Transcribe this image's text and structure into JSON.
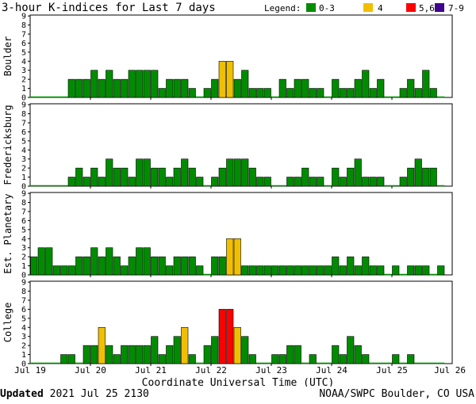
{
  "title": "3-hour K-indices for Last 7 days",
  "legend": {
    "label": "Legend:",
    "items": [
      {
        "label": "0-3",
        "color": "#008c00"
      },
      {
        "label": "4",
        "color": "#f0c000"
      },
      {
        "label": "5,6",
        "color": "#ff0000"
      },
      {
        "label": "7-9",
        "color": "#400090"
      }
    ]
  },
  "footer": {
    "updated_label": "Updated",
    "updated_value": "2021 Jul 25 2130",
    "credit": "NOAA/SWPC Boulder, CO USA"
  },
  "chart_data": {
    "type": "bar",
    "xlabel": "Coordinate Universal Time (UTC)",
    "x_ticks": [
      "Jul 19",
      "Jul 20",
      "Jul 21",
      "Jul 22",
      "Jul 23",
      "Jul 24",
      "Jul 25",
      "Jul 26"
    ],
    "ylim": [
      0,
      9
    ],
    "y_ticks": [
      0,
      1,
      2,
      3,
      4,
      5,
      6,
      7,
      8,
      9
    ],
    "bars_per_day": 8,
    "panels": [
      {
        "ylabel": "Boulder",
        "values": [
          0,
          0,
          0,
          0,
          0,
          2,
          2,
          2,
          3,
          2,
          3,
          2,
          2,
          3,
          3,
          3,
          3,
          1,
          2,
          2,
          2,
          1,
          0,
          1,
          2,
          4,
          4,
          2,
          3,
          1,
          1,
          1,
          0,
          2,
          1,
          2,
          2,
          1,
          1,
          0,
          2,
          1,
          1,
          2,
          3,
          1,
          2,
          0,
          0,
          1,
          2,
          1,
          3,
          1,
          0
        ]
      },
      {
        "ylabel": "Fredericksburg",
        "values": [
          0,
          0,
          0,
          0,
          0,
          1,
          2,
          1,
          2,
          1,
          3,
          2,
          2,
          1,
          3,
          3,
          2,
          2,
          1,
          2,
          3,
          2,
          1,
          0,
          1,
          2,
          3,
          3,
          3,
          2,
          1,
          1,
          0,
          0,
          1,
          1,
          2,
          1,
          1,
          0,
          2,
          1,
          2,
          3,
          1,
          1,
          1,
          0,
          0,
          1,
          2,
          3,
          2,
          2,
          0
        ]
      },
      {
        "ylabel": "Est. Planetary",
        "values": [
          2,
          3,
          3,
          1,
          1,
          1,
          2,
          2,
          3,
          2,
          3,
          2,
          1,
          2,
          3,
          3,
          2,
          2,
          1,
          2,
          2,
          2,
          1,
          0,
          2,
          2,
          4,
          4,
          1,
          1,
          1,
          1,
          1,
          1,
          1,
          1,
          1,
          1,
          1,
          1,
          2,
          1,
          2,
          1,
          2,
          1,
          1,
          0,
          1,
          0,
          1,
          1,
          1,
          0,
          1
        ]
      },
      {
        "ylabel": "College",
        "values": [
          0,
          0,
          0,
          0,
          1,
          1,
          0,
          2,
          2,
          4,
          2,
          1,
          2,
          2,
          2,
          2,
          3,
          1,
          2,
          3,
          4,
          1,
          0,
          2,
          3,
          6,
          6,
          4,
          3,
          1,
          0,
          0,
          1,
          1,
          2,
          2,
          0,
          1,
          0,
          0,
          2,
          1,
          3,
          2,
          1,
          0,
          0,
          0,
          1,
          0,
          1,
          0,
          0,
          0,
          0
        ]
      }
    ]
  }
}
